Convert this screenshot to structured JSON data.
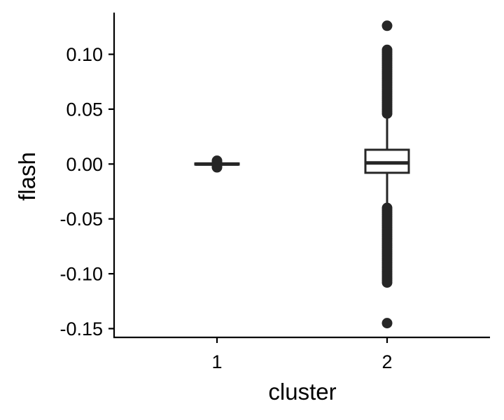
{
  "chart_data": {
    "type": "boxplot",
    "title": "",
    "xlabel": "cluster",
    "ylabel": "flash",
    "categories": [
      "1",
      "2"
    ],
    "ylim": [
      -0.158,
      0.138
    ],
    "yticks": [
      0.1,
      0.05,
      0.0,
      -0.05,
      -0.1,
      -0.15
    ],
    "ytick_labels": [
      "0.10",
      "0.05",
      "0.00",
      "-0.05",
      "-0.10",
      "-0.15"
    ],
    "grid": false,
    "legend": "none",
    "colors": {
      "ink": "#262626",
      "axis": "#000000",
      "box_fill": "#ffffff"
    },
    "boxes": [
      {
        "category": "1",
        "q1": -0.0005,
        "median": 0.0,
        "q3": 0.0005,
        "whisker_low": -0.0015,
        "whisker_high": 0.0015,
        "outliers": [
          -0.003,
          -0.002,
          0.002,
          0.003
        ]
      },
      {
        "category": "2",
        "q1": -0.008,
        "median": 0.001,
        "q3": 0.013,
        "whisker_low": -0.038,
        "whisker_high": 0.043,
        "outliers": [
          0.126,
          0.104,
          0.102,
          0.1,
          0.098,
          0.096,
          0.094,
          0.092,
          0.09,
          0.088,
          0.086,
          0.084,
          0.082,
          0.08,
          0.078,
          0.076,
          0.074,
          0.072,
          0.07,
          0.068,
          0.066,
          0.064,
          0.062,
          0.06,
          0.058,
          0.056,
          0.054,
          0.052,
          0.05,
          0.048,
          0.046,
          -0.04,
          -0.042,
          -0.044,
          -0.046,
          -0.048,
          -0.05,
          -0.052,
          -0.054,
          -0.056,
          -0.058,
          -0.06,
          -0.062,
          -0.064,
          -0.066,
          -0.068,
          -0.07,
          -0.072,
          -0.074,
          -0.076,
          -0.078,
          -0.08,
          -0.082,
          -0.084,
          -0.086,
          -0.088,
          -0.09,
          -0.092,
          -0.094,
          -0.096,
          -0.098,
          -0.1,
          -0.102,
          -0.104,
          -0.106,
          -0.108,
          -0.145
        ]
      }
    ]
  }
}
